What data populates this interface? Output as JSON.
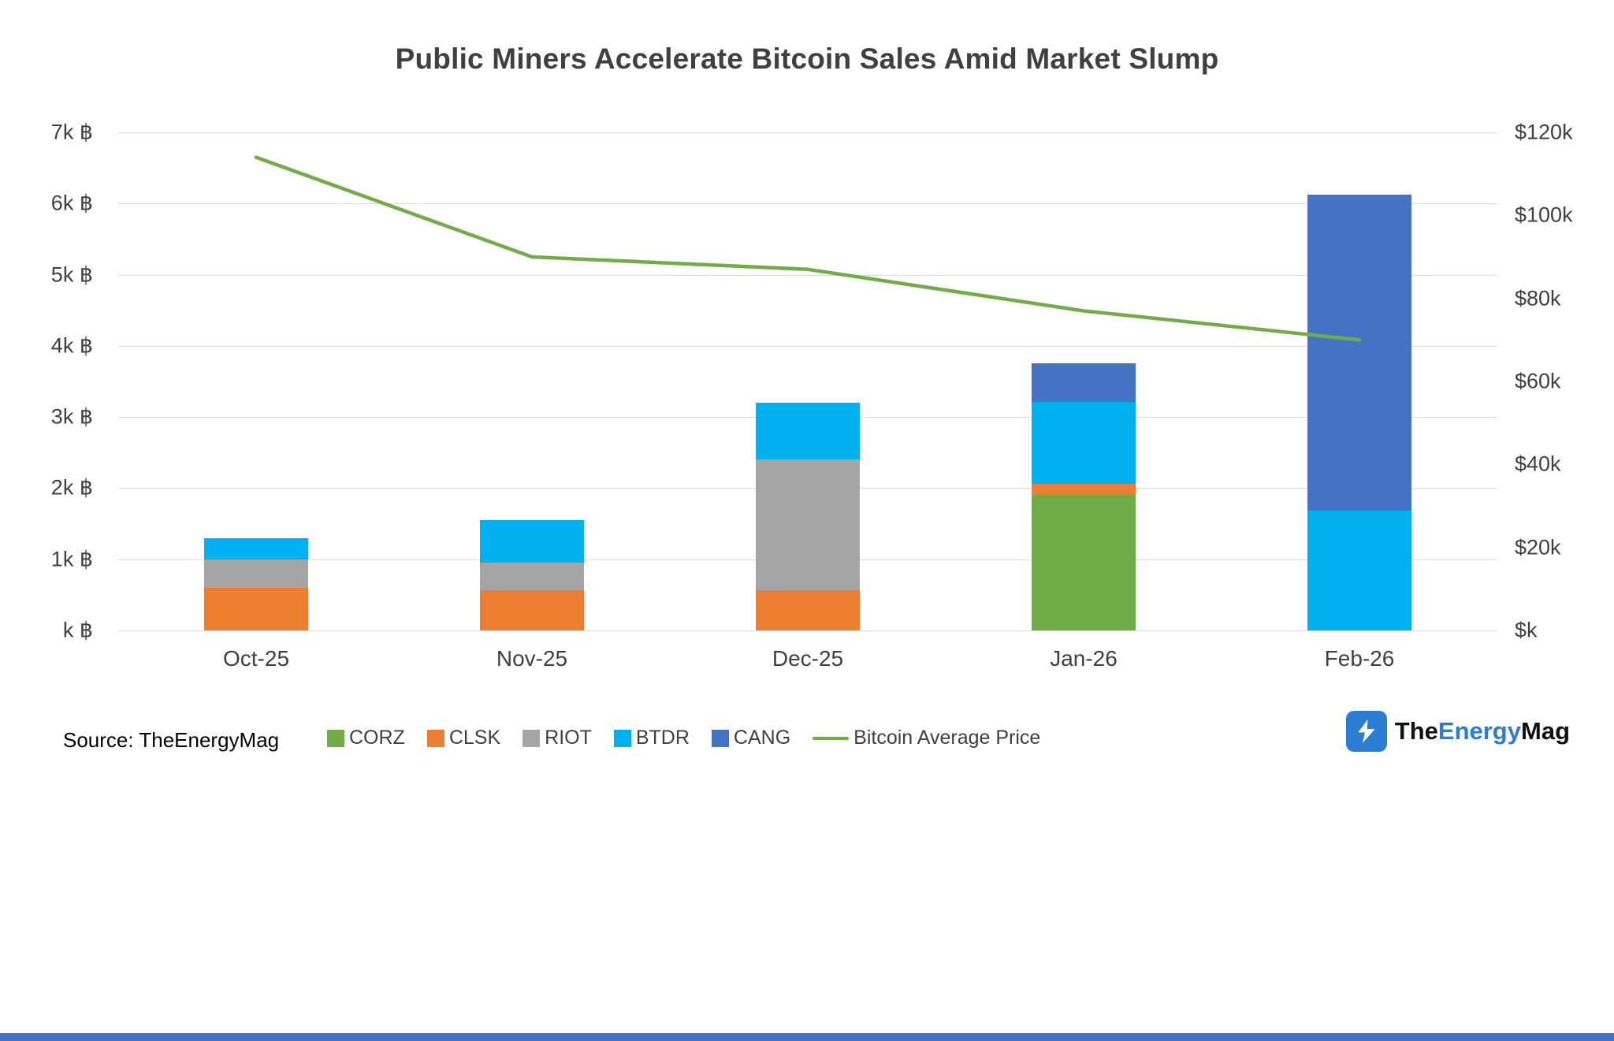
{
  "source": "Source: TheEnergyMag",
  "logo": {
    "part1": "The",
    "part2": "Energy",
    "part3": "Mag"
  },
  "colors": {
    "grid": "#d9d9d9",
    "axis_text": "#404040",
    "footer_bar": "#4472C4",
    "logo_blue": "#2B7CD3"
  },
  "chart_data": {
    "type": "bar",
    "stacked": true,
    "title": "Public Miners Accelerate Bitcoin Sales Amid Market Slump",
    "categories": [
      "Oct-25",
      "Nov-25",
      "Dec-25",
      "Jan-26",
      "Feb-26"
    ],
    "series": [
      {
        "name": "CORZ",
        "color": "#70AD47",
        "values": [
          0,
          0,
          0,
          1900,
          0
        ]
      },
      {
        "name": "CLSK",
        "color": "#ED7D31",
        "values": [
          600,
          570,
          570,
          160,
          0
        ]
      },
      {
        "name": "RIOT",
        "color": "#A5A5A5",
        "values": [
          400,
          380,
          1830,
          0,
          0
        ]
      },
      {
        "name": "BTDR",
        "color": "#00B0F0",
        "values": [
          300,
          600,
          800,
          1150,
          1680
        ]
      },
      {
        "name": "CANG",
        "color": "#4472C4",
        "values": [
          0,
          0,
          0,
          550,
          4450
        ]
      }
    ],
    "line": {
      "name": "Bitcoin Average Price",
      "color": "#70AD47",
      "axis": "right",
      "values": [
        114000,
        90000,
        87000,
        77000,
        70000
      ]
    },
    "left_axis": {
      "unit": "BTC",
      "min": 0,
      "max": 7000,
      "step": 1000,
      "ticks": [
        "k ฿",
        "1k ฿",
        "2k ฿",
        "3k ฿",
        "4k ฿",
        "5k ฿",
        "6k ฿",
        "7k ฿"
      ]
    },
    "right_axis": {
      "unit": "USD",
      "min": 0,
      "max": 120000,
      "step": 20000,
      "ticks": [
        "$k",
        "$20k",
        "$40k",
        "$60k",
        "$80k",
        "$100k",
        "$120k"
      ]
    },
    "grid": true,
    "legend_position": "bottom"
  }
}
